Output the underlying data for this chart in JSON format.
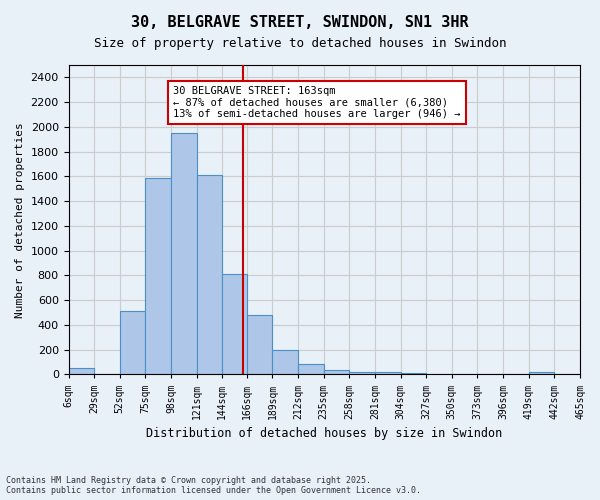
{
  "title": "30, BELGRAVE STREET, SWINDON, SN1 3HR",
  "subtitle": "Size of property relative to detached houses in Swindon",
  "xlabel": "Distribution of detached houses by size in Swindon",
  "ylabel": "Number of detached properties",
  "footer_line1": "Contains HM Land Registry data © Crown copyright and database right 2025.",
  "footer_line2": "Contains public sector information licensed under the Open Government Licence v3.0.",
  "bins": [
    6,
    29,
    52,
    75,
    98,
    121,
    144,
    166,
    189,
    212,
    235,
    258,
    281,
    304,
    327,
    350,
    373,
    396,
    419,
    442,
    465
  ],
  "bin_labels": [
    "6sqm",
    "29sqm",
    "52sqm",
    "75sqm",
    "98sqm",
    "121sqm",
    "144sqm",
    "166sqm",
    "189sqm",
    "212sqm",
    "235sqm",
    "258sqm",
    "281sqm",
    "304sqm",
    "327sqm",
    "350sqm",
    "373sqm",
    "396sqm",
    "419sqm",
    "442sqm",
    "465sqm"
  ],
  "values": [
    55,
    0,
    510,
    1590,
    1950,
    1610,
    810,
    480,
    200,
    80,
    35,
    20,
    20,
    15,
    0,
    0,
    0,
    0,
    20,
    0
  ],
  "bar_color": "#aec6e8",
  "bar_edge_color": "#4a90c4",
  "vline_x": 163,
  "vline_color": "#cc0000",
  "annotation_title": "30 BELGRAVE STREET: 163sqm",
  "annotation_line1": "← 87% of detached houses are smaller (6,380)",
  "annotation_line2": "13% of semi-detached houses are larger (946) →",
  "annotation_box_color": "#cc0000",
  "annotation_bg": "#ffffff",
  "ylim": [
    0,
    2500
  ],
  "yticks": [
    0,
    200,
    400,
    600,
    800,
    1000,
    1200,
    1400,
    1600,
    1800,
    2000,
    2200,
    2400
  ],
  "grid_color": "#cccccc",
  "bg_color": "#e8f0f8"
}
